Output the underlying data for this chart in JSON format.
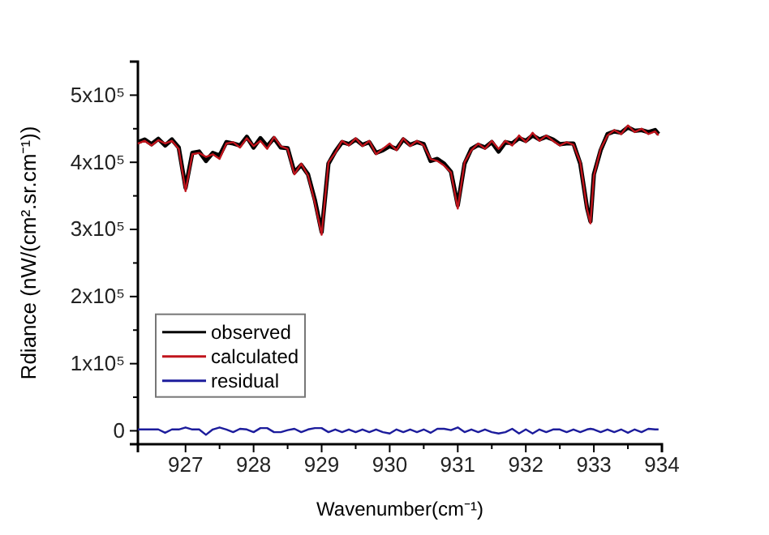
{
  "chart_data": {
    "type": "line",
    "xlabel": "Wavenumber(cm⁻¹)",
    "ylabel": "Rdiance (nW/(cm².sr.cm⁻¹))",
    "x": [
      926.3,
      926.4,
      926.5,
      926.6,
      926.7,
      926.8,
      926.9,
      927.0,
      927.1,
      927.2,
      927.3,
      927.4,
      927.5,
      927.6,
      927.7,
      927.8,
      927.9,
      928.0,
      928.1,
      928.2,
      928.3,
      928.4,
      928.5,
      928.6,
      928.7,
      928.8,
      928.9,
      929.0,
      929.1,
      929.2,
      929.3,
      929.4,
      929.5,
      929.6,
      929.7,
      929.8,
      929.9,
      930.0,
      930.1,
      930.2,
      930.3,
      930.4,
      930.5,
      930.6,
      930.7,
      930.8,
      930.9,
      931.0,
      931.1,
      931.2,
      931.3,
      931.4,
      931.5,
      931.6,
      931.7,
      931.8,
      931.9,
      932.0,
      932.1,
      932.2,
      932.3,
      932.4,
      932.5,
      932.6,
      932.7,
      932.8,
      932.9,
      932.95,
      933.0,
      933.1,
      933.2,
      933.3,
      933.4,
      933.5,
      933.6,
      933.7,
      933.8,
      933.9,
      933.95
    ],
    "series": [
      {
        "name": "observed",
        "color": "#000000",
        "values": [
          430000,
          434000,
          427000,
          435000,
          425000,
          434000,
          422000,
          362000,
          414000,
          416000,
          402000,
          414000,
          410000,
          430000,
          428000,
          425000,
          438000,
          422000,
          436000,
          424000,
          436000,
          422000,
          421000,
          385000,
          396000,
          382000,
          344000,
          296000,
          398000,
          416000,
          430000,
          427000,
          434000,
          426000,
          430000,
          414000,
          418000,
          424000,
          420000,
          434000,
          426000,
          430000,
          427000,
          402000,
          405000,
          398000,
          386000,
          336000,
          398000,
          420000,
          426000,
          422000,
          430000,
          416000,
          430000,
          428000,
          436000,
          432000,
          440000,
          434000,
          438000,
          434000,
          427000,
          428000,
          428000,
          398000,
          332000,
          312000,
          382000,
          418000,
          442000,
          446000,
          444000,
          452000,
          447000,
          448000,
          445000,
          448000,
          442000
        ]
      },
      {
        "name": "calculated",
        "color": "#c0141c",
        "values": [
          428000,
          432000,
          425000,
          433000,
          428000,
          432000,
          420000,
          357000,
          412000,
          414000,
          408000,
          412000,
          405000,
          428000,
          430000,
          422000,
          436000,
          424000,
          432000,
          420000,
          438000,
          424000,
          420000,
          382000,
          398000,
          380000,
          340000,
          292000,
          400000,
          414000,
          432000,
          425000,
          436000,
          424000,
          432000,
          412000,
          420000,
          428000,
          418000,
          436000,
          424000,
          432000,
          425000,
          405000,
          402000,
          395000,
          385000,
          331000,
          400000,
          418000,
          428000,
          420000,
          432000,
          420000,
          432000,
          425000,
          440000,
          430000,
          444000,
          432000,
          440000,
          432000,
          425000,
          430000,
          426000,
          400000,
          330000,
          309000,
          380000,
          420000,
          440000,
          448000,
          442000,
          455000,
          445000,
          450000,
          442000,
          446000,
          440000
        ]
      },
      {
        "name": "residual",
        "color": "#1c1c9c",
        "values": [
          2000,
          2000,
          2000,
          2000,
          -3000,
          2000,
          2000,
          5000,
          2000,
          2000,
          -6000,
          2000,
          5000,
          2000,
          -2000,
          3000,
          2000,
          -2000,
          4000,
          4000,
          -2000,
          -2000,
          1000,
          3000,
          -2000,
          2000,
          4000,
          4000,
          -2000,
          2000,
          -2000,
          2000,
          -2000,
          2000,
          -2000,
          2000,
          -2000,
          -4000,
          2000,
          -2000,
          2000,
          -2000,
          2000,
          -3000,
          3000,
          3000,
          1000,
          5000,
          -2000,
          2000,
          -2000,
          2000,
          -2000,
          -4000,
          -2000,
          3000,
          -4000,
          2000,
          -4000,
          2000,
          -2000,
          2000,
          2000,
          -2000,
          2000,
          -2000,
          2000,
          3000,
          2000,
          -2000,
          2000,
          -2000,
          2000,
          -3000,
          2000,
          -2000,
          3000,
          2000,
          2000
        ]
      }
    ],
    "xlim": [
      926.3,
      934
    ],
    "xticks": [
      927,
      {
        "value": 927.5,
        "label": null
      },
      928,
      {
        "value": 928.5,
        "label": null
      },
      929,
      {
        "value": 929.5,
        "label": null
      },
      930,
      {
        "value": 930.5,
        "label": null
      },
      931,
      {
        "value": 931.5,
        "label": null
      },
      932,
      {
        "value": 932.5,
        "label": null
      },
      933,
      {
        "value": 933.5,
        "label": null
      },
      934
    ],
    "ylim": [
      -20000,
      550000
    ],
    "yticks": [
      {
        "value": 0,
        "label": "0"
      },
      {
        "value": 50000,
        "label": null
      },
      {
        "value": 100000,
        "label": "1x10⁵"
      },
      {
        "value": 150000,
        "label": null
      },
      {
        "value": 200000,
        "label": "2x10⁵"
      },
      {
        "value": 250000,
        "label": null
      },
      {
        "value": 300000,
        "label": "3x10⁵"
      },
      {
        "value": 350000,
        "label": null
      },
      {
        "value": 400000,
        "label": "4x10⁵"
      },
      {
        "value": 450000,
        "label": null
      },
      {
        "value": 500000,
        "label": "5x10⁵"
      }
    ],
    "legend": "bottom left",
    "grid": false
  }
}
